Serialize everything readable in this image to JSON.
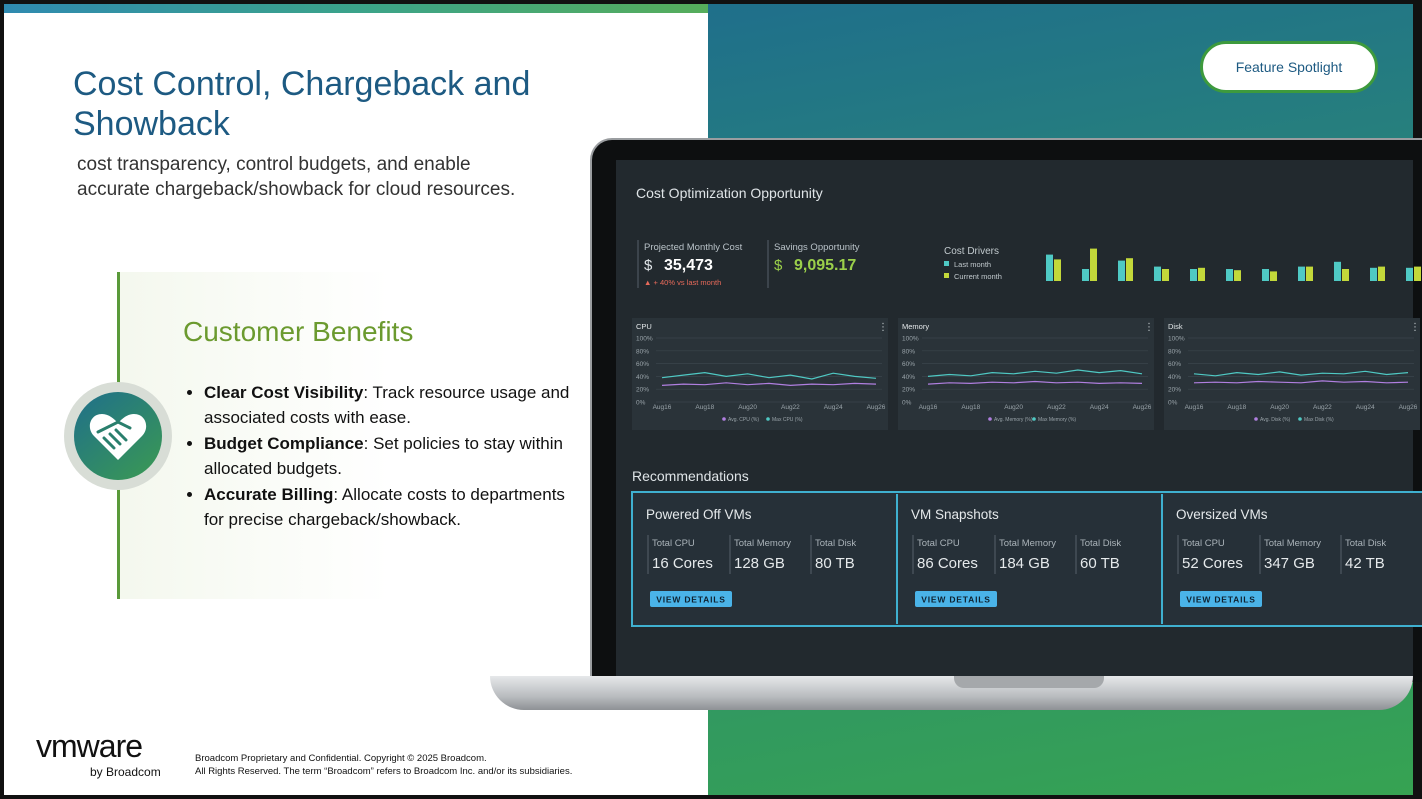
{
  "header": {
    "title": "Cost Control, Chargeback and Showback",
    "subtitle": "cost transparency, control budgets, and enable accurate chargeback/showback for cloud resources."
  },
  "badge": "Feature Spotlight",
  "benefits": {
    "title": "Customer Benefits",
    "items": [
      {
        "term": "Clear Cost Visibility",
        "text": ": Track resource usage and associated costs with ease."
      },
      {
        "term": "Budget Compliance",
        "text": ": Set policies to stay within allocated budgets."
      },
      {
        "term": "Accurate Billing",
        "text": ": Allocate costs to departments for precise chargeback/showback."
      }
    ]
  },
  "dashboard": {
    "title": "Cost Optimization Opportunity",
    "metrics": [
      {
        "label": "Projected Monthly Cost",
        "currency": "$",
        "value": "35,473",
        "note": "▲ + 40% vs last month"
      },
      {
        "label": "Savings Opportunity",
        "currency": "$",
        "value": "9,095.17"
      }
    ],
    "cost_drivers": {
      "type": "bar",
      "title": "Cost Drivers",
      "ylim": [
        0,
        30
      ],
      "series": [
        {
          "name": "Last month",
          "color": "#4fc9c4",
          "values": [
            22,
            10,
            17,
            12,
            10,
            10,
            10,
            12,
            16,
            11,
            11
          ]
        },
        {
          "name": "Current month",
          "color": "#c3d83a",
          "values": [
            18,
            27,
            19,
            10,
            11,
            9,
            8,
            12,
            10,
            12,
            12
          ]
        }
      ]
    },
    "usage_charts": [
      {
        "type": "line",
        "title": "CPU",
        "categories": [
          "Aug16",
          null,
          "Aug18",
          null,
          "Aug20",
          null,
          "Aug22",
          null,
          "Aug24",
          null,
          "Aug26"
        ],
        "ylim": [
          0,
          100
        ],
        "yticks": [
          {
            "value": 0,
            "label": "0%"
          },
          {
            "value": 20,
            "label": "20%"
          },
          {
            "value": 40,
            "label": "40%"
          },
          {
            "value": 60,
            "label": "60%"
          },
          {
            "value": 80,
            "label": "80%"
          },
          {
            "value": 100,
            "label": "100%"
          }
        ],
        "series": [
          {
            "name": "Avg. CPU (%)",
            "color": "#b07fe0",
            "values": [
              26,
              28,
              27,
              30,
              27,
              29,
              26,
              28,
              27,
              29,
              28
            ]
          },
          {
            "name": "Max CPU (%)",
            "color": "#4fc9c4",
            "values": [
              38,
              42,
              46,
              40,
              44,
              38,
              42,
              36,
              45,
              40,
              37
            ]
          }
        ]
      },
      {
        "type": "line",
        "title": "Memory",
        "categories": [
          "Aug16",
          null,
          "Aug18",
          null,
          "Aug20",
          null,
          "Aug22",
          null,
          "Aug24",
          null,
          "Aug26"
        ],
        "ylim": [
          0,
          100
        ],
        "yticks": [
          {
            "value": 0,
            "label": "0%"
          },
          {
            "value": 20,
            "label": "20%"
          },
          {
            "value": 40,
            "label": "40%"
          },
          {
            "value": 60,
            "label": "60%"
          },
          {
            "value": 80,
            "label": "80%"
          },
          {
            "value": 100,
            "label": "100%"
          }
        ],
        "series": [
          {
            "name": "Avg. Memory (%)",
            "color": "#b07fe0",
            "values": [
              28,
              30,
              29,
              31,
              30,
              32,
              30,
              31,
              29,
              30,
              29
            ]
          },
          {
            "name": "Max Memory (%)",
            "color": "#4fc9c4",
            "values": [
              40,
              43,
              41,
              46,
              44,
              48,
              45,
              50,
              46,
              49,
              44
            ]
          }
        ]
      },
      {
        "type": "line",
        "title": "Disk",
        "categories": [
          "Aug16",
          null,
          "Aug18",
          null,
          "Aug20",
          null,
          "Aug22",
          null,
          "Aug24",
          null,
          "Aug26"
        ],
        "ylim": [
          0,
          100
        ],
        "yticks": [
          {
            "value": 0,
            "label": "0%"
          },
          {
            "value": 20,
            "label": "20%"
          },
          {
            "value": 40,
            "label": "40%"
          },
          {
            "value": 60,
            "label": "60%"
          },
          {
            "value": 80,
            "label": "80%"
          },
          {
            "value": 100,
            "label": "100%"
          }
        ],
        "series": [
          {
            "name": "Avg. Disk (%)",
            "color": "#b07fe0",
            "values": [
              30,
              31,
              30,
              32,
              31,
              30,
              33,
              31,
              32,
              30,
              31
            ]
          },
          {
            "name": "Max Disk (%)",
            "color": "#4fc9c4",
            "values": [
              44,
              41,
              46,
              43,
              47,
              42,
              45,
              44,
              48,
              43,
              46
            ]
          }
        ]
      }
    ],
    "recommendations": {
      "title": "Recommendations",
      "cards": [
        {
          "title": "Powered Off VMs",
          "stats": [
            {
              "label": "Total CPU",
              "value": "16 Cores"
            },
            {
              "label": "Total Memory",
              "value": "128 GB"
            },
            {
              "label": "Total Disk",
              "value": "80 TB"
            }
          ],
          "button": "VIEW DETAILS"
        },
        {
          "title": "VM Snapshots",
          "stats": [
            {
              "label": "Total CPU",
              "value": "86 Cores"
            },
            {
              "label": "Total Memory",
              "value": "184 GB"
            },
            {
              "label": "Total Disk",
              "value": "60 TB"
            }
          ],
          "button": "VIEW DETAILS"
        },
        {
          "title": "Oversized VMs",
          "stats": [
            {
              "label": "Total CPU",
              "value": "52 Cores"
            },
            {
              "label": "Total Memory",
              "value": "347 GB"
            },
            {
              "label": "Total Disk",
              "value": "42 TB"
            }
          ],
          "button": "VIEW DETAILS"
        }
      ]
    }
  },
  "footer": {
    "logo": "vmware",
    "byline": "by Broadcom",
    "legal": [
      "Broadcom Proprietary and Confidential. Copyright © 2025 Broadcom.",
      "All Rights Reserved. The term “Broadcom” refers to Broadcom Inc. and/or its subsidiaries."
    ]
  }
}
